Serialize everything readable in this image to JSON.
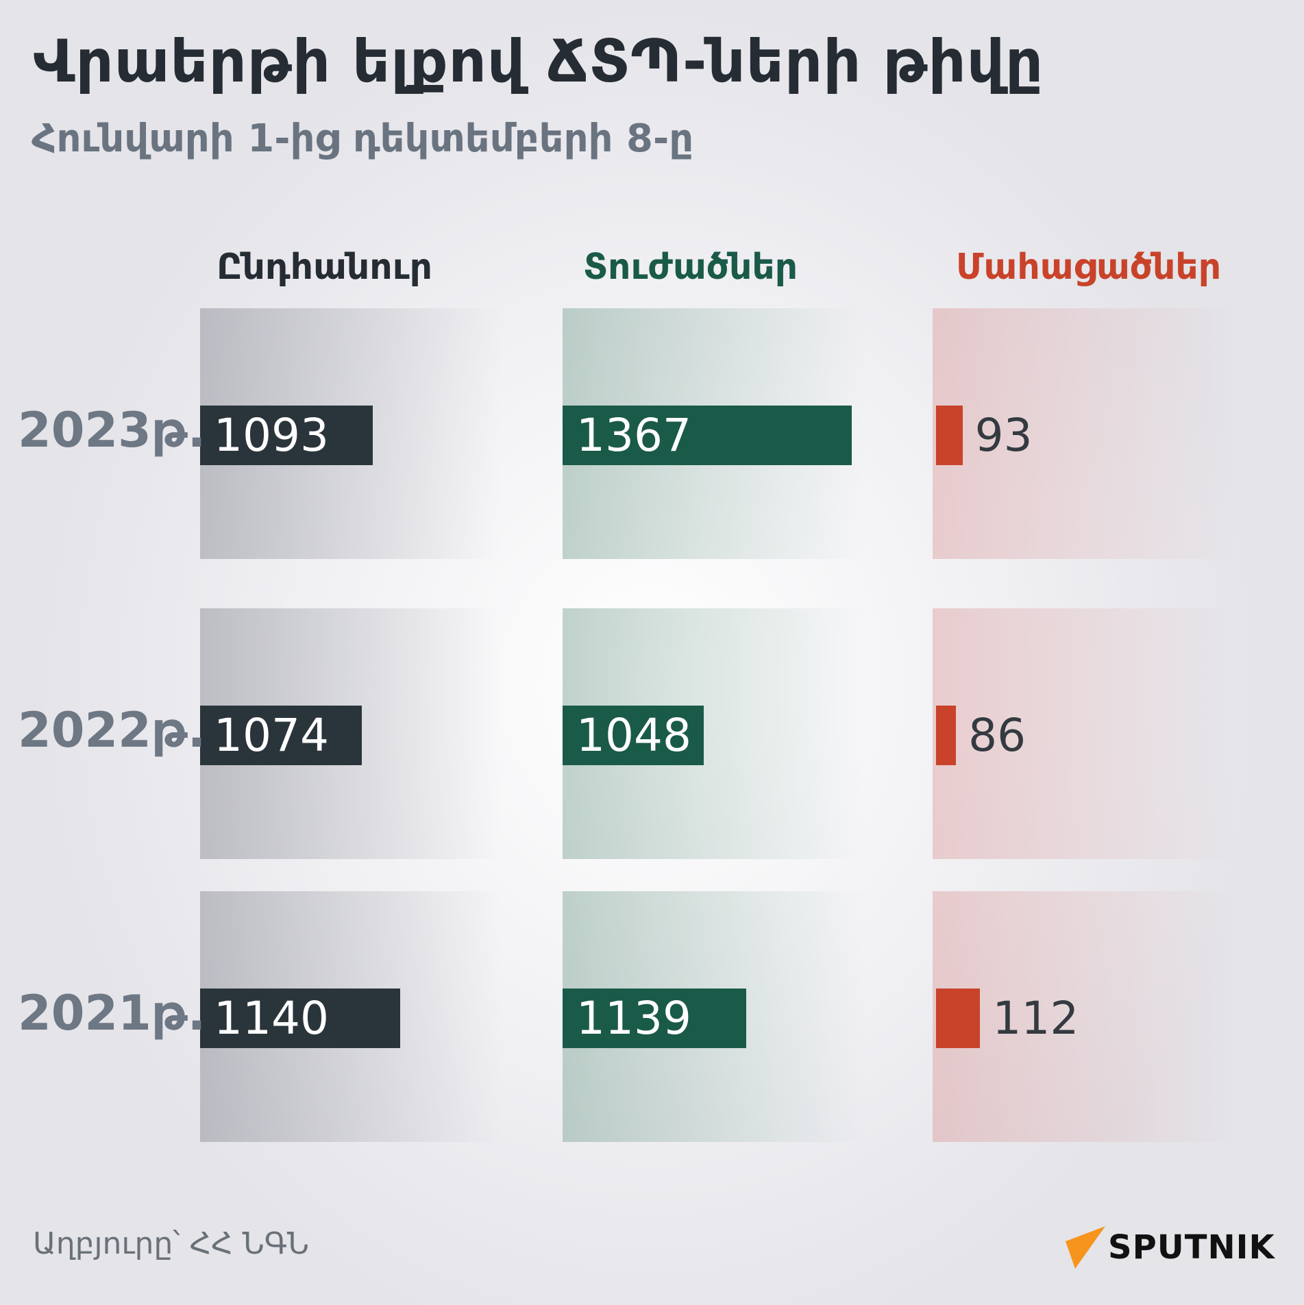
{
  "title": "Վրաերթի ելքով ՃՏՊ-ների թիվը",
  "subtitle": "Հունվարի 1-ից դեկտեմբերի 8-ը",
  "source": "Աղբյուրը՝ ՀՀ ՆԳՆ",
  "logo": "SPUTNIK",
  "colors": {
    "total": "#2a353b",
    "injured": "#1a5a48",
    "deaths": "#c8432a",
    "logo_accent": "#f7941d"
  },
  "chart_data": {
    "type": "bar",
    "orientation": "horizontal",
    "categories": [
      "2023թ.",
      "2022թ.",
      "2021թ."
    ],
    "series": [
      {
        "name": "Ընդհանուր",
        "values": [
          1093,
          1074,
          1140
        ],
        "color": "#2a353b"
      },
      {
        "name": "Տուժածներ",
        "values": [
          1367,
          1048,
          1139
        ],
        "color": "#1a5a48"
      },
      {
        "name": "Մահացածներ",
        "values": [
          93,
          86,
          112
        ],
        "color": "#c8432a"
      }
    ],
    "grid": false,
    "legend": "column headers on top"
  }
}
